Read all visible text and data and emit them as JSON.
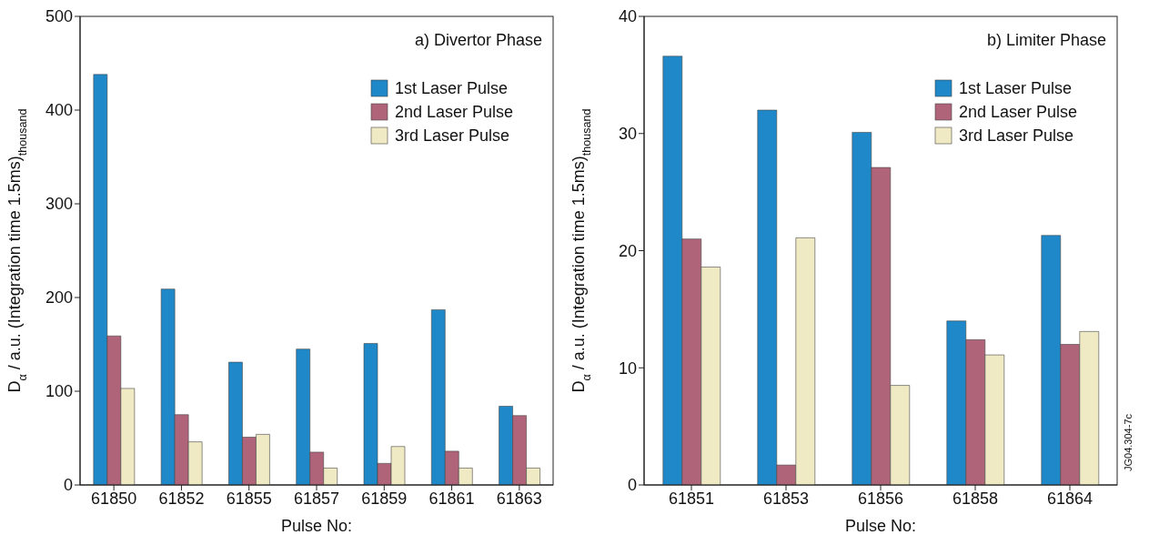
{
  "chart_data": [
    {
      "type": "bar",
      "title": "a) Divertor Phase",
      "xlabel": "Pulse No:",
      "ylabel": "D$_{α}$ / a.u. (Integration time 1.5ms)$_{thousand}$",
      "categories": [
        "61850",
        "61852",
        "61855",
        "61857",
        "61859",
        "61861",
        "61863"
      ],
      "series": [
        {
          "name": "1st Laser Pulse",
          "color": "#1f88c8",
          "values": [
            438,
            209,
            131,
            145,
            151,
            187,
            84
          ]
        },
        {
          "name": "2nd Laser Pulse",
          "color": "#b0647a",
          "values": [
            159,
            75,
            51,
            35,
            23,
            36,
            74
          ]
        },
        {
          "name": "3rd Laser Pulse",
          "color": "#efeac4",
          "values": [
            103,
            46,
            54,
            18,
            41,
            18,
            18
          ]
        }
      ],
      "ylim": [
        0,
        500
      ],
      "yticks": [
        0,
        100,
        200,
        300,
        400,
        500
      ],
      "grid": false,
      "legend": "top right"
    },
    {
      "type": "bar",
      "title": "b) Limiter Phase",
      "xlabel": "Pulse No:",
      "ylabel": "D$_{α}$ / a.u. (Integration time 1.5ms)$_{thousand}$",
      "categories": [
        "61851",
        "61853",
        "61856",
        "61858",
        "61864"
      ],
      "series": [
        {
          "name": "1st Laser Pulse",
          "color": "#1f88c8",
          "values": [
            36.6,
            32.0,
            30.1,
            14.0,
            21.3
          ]
        },
        {
          "name": "2nd Laser Pulse",
          "color": "#b0647a",
          "values": [
            21.0,
            1.7,
            27.1,
            12.4,
            12.0
          ]
        },
        {
          "name": "3rd Laser Pulse",
          "color": "#efeac4",
          "values": [
            18.6,
            21.1,
            8.5,
            11.1,
            13.1
          ]
        }
      ],
      "ylim": [
        0,
        40
      ],
      "yticks": [
        0,
        10,
        20,
        30,
        40
      ],
      "grid": false,
      "legend": "top right",
      "annotations": [
        "JG04.304-7c"
      ]
    }
  ]
}
